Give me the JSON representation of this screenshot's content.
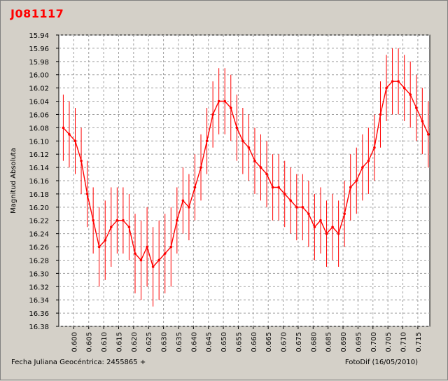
{
  "window": {
    "title": "J081117"
  },
  "footer": {
    "xlabel": "Fecha Juliana Geocéntrica: 2455865 +",
    "credit": "FotoDif (16/05/2010)"
  },
  "colors": {
    "series": "#ff0000",
    "plot_bg": "#ffffff",
    "grid": "#a0a0a0",
    "window_bg": "#d4d0c8"
  },
  "chart_data": {
    "type": "line",
    "title": "J081117",
    "xlabel": "Fecha Juliana Geocéntrica: 2455865 +",
    "ylabel": "Magnitud Absoluta",
    "xlim": [
      0.595,
      0.719
    ],
    "ylim": [
      15.94,
      16.38
    ],
    "y_inverted": true,
    "grid": true,
    "x_ticks": [
      "0.600",
      "0.605",
      "0.610",
      "0.615",
      "0.620",
      "0.625",
      "0.630",
      "0.635",
      "0.640",
      "0.645",
      "0.650",
      "0.655",
      "0.660",
      "0.665",
      "0.670",
      "0.675",
      "0.680",
      "0.685",
      "0.690",
      "0.695",
      "0.700",
      "0.705",
      "0.710",
      "0.715"
    ],
    "y_ticks": [
      "15.94",
      "15.96",
      "15.98",
      "16.00",
      "16.02",
      "16.04",
      "16.06",
      "16.08",
      "16.10",
      "16.12",
      "16.14",
      "16.16",
      "16.18",
      "16.20",
      "16.22",
      "16.24",
      "16.26",
      "16.28",
      "16.30",
      "16.32",
      "16.34",
      "16.36",
      "16.38"
    ],
    "series": [
      {
        "x": [
          0.5965,
          0.5985,
          0.6005,
          0.6025,
          0.6045,
          0.6065,
          0.6085,
          0.6105,
          0.6125,
          0.6145,
          0.6165,
          0.6185,
          0.6205,
          0.6225,
          0.6245,
          0.6265,
          0.6285,
          0.6305,
          0.6325,
          0.6345,
          0.6365,
          0.6385,
          0.6405,
          0.6425,
          0.6445,
          0.6465,
          0.6485,
          0.6505,
          0.6525,
          0.6545,
          0.6565,
          0.6585,
          0.6605,
          0.6625,
          0.6645,
          0.6665,
          0.6685,
          0.6705,
          0.6725,
          0.6745,
          0.6765,
          0.6785,
          0.6805,
          0.6825,
          0.6845,
          0.6865,
          0.6885,
          0.6905,
          0.6925,
          0.6945,
          0.6965,
          0.6985,
          0.7005,
          0.7025,
          0.7045,
          0.7065,
          0.7085,
          0.7105,
          0.7125,
          0.7145,
          0.7165,
          0.7185
        ],
        "y": [
          16.08,
          16.09,
          16.1,
          16.13,
          16.18,
          16.22,
          16.26,
          16.25,
          16.23,
          16.22,
          16.22,
          16.23,
          16.27,
          16.28,
          16.26,
          16.29,
          16.28,
          16.27,
          16.26,
          16.22,
          16.19,
          16.2,
          16.17,
          16.14,
          16.1,
          16.06,
          16.04,
          16.04,
          16.05,
          16.08,
          16.1,
          16.11,
          16.13,
          16.14,
          16.15,
          16.17,
          16.17,
          16.18,
          16.19,
          16.2,
          16.2,
          16.21,
          16.23,
          16.22,
          16.24,
          16.23,
          16.24,
          16.21,
          16.17,
          16.16,
          16.14,
          16.13,
          16.11,
          16.06,
          16.02,
          16.01,
          16.01,
          16.02,
          16.03,
          16.05,
          16.07,
          16.09
        ],
        "err": [
          0.05,
          0.05,
          0.05,
          0.05,
          0.05,
          0.05,
          0.06,
          0.06,
          0.06,
          0.05,
          0.05,
          0.05,
          0.06,
          0.06,
          0.06,
          0.06,
          0.06,
          0.06,
          0.06,
          0.05,
          0.05,
          0.05,
          0.05,
          0.05,
          0.05,
          0.05,
          0.05,
          0.05,
          0.05,
          0.05,
          0.05,
          0.05,
          0.05,
          0.05,
          0.05,
          0.05,
          0.05,
          0.05,
          0.05,
          0.05,
          0.05,
          0.05,
          0.05,
          0.05,
          0.05,
          0.05,
          0.05,
          0.05,
          0.05,
          0.05,
          0.05,
          0.05,
          0.05,
          0.05,
          0.05,
          0.05,
          0.05,
          0.05,
          0.05,
          0.05,
          0.05,
          0.05
        ]
      }
    ]
  }
}
